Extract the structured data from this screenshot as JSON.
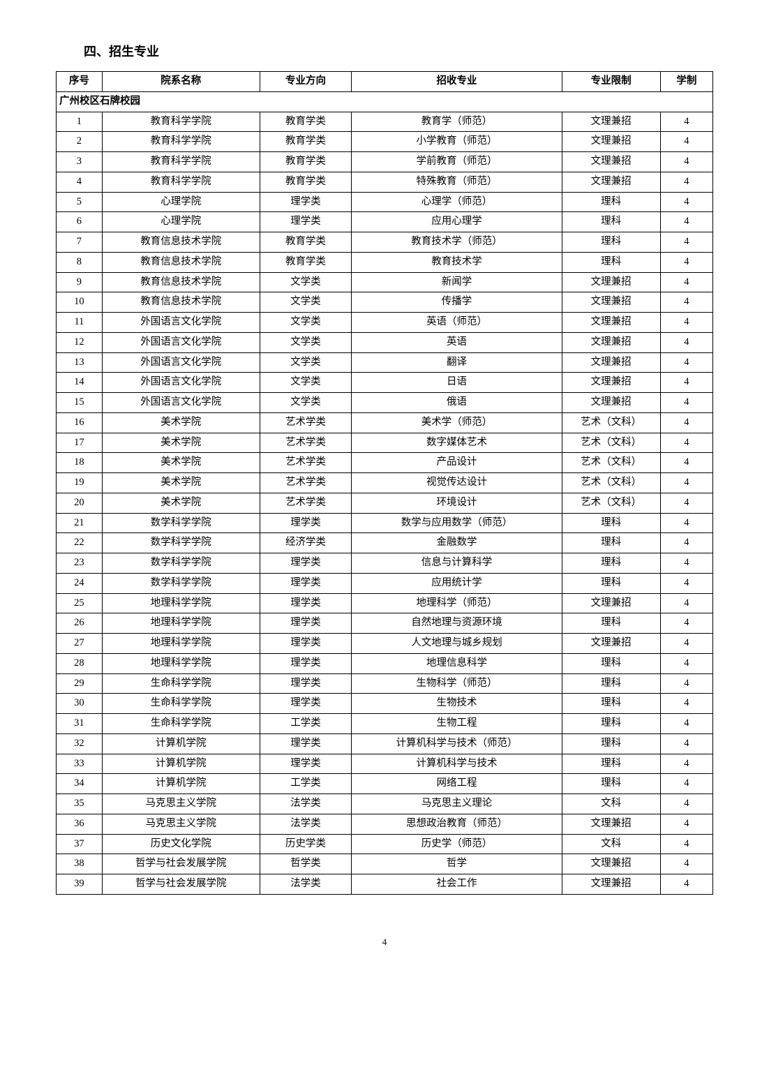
{
  "section_title": "四、招生专业",
  "columns": [
    "序号",
    "院系名称",
    "专业方向",
    "招收专业",
    "专业限制",
    "学制"
  ],
  "campus_header": "广州校区石牌校园",
  "page_number": "4",
  "rows": [
    [
      "1",
      "教育科学学院",
      "教育学类",
      "教育学（师范）",
      "文理兼招",
      "4"
    ],
    [
      "2",
      "教育科学学院",
      "教育学类",
      "小学教育（师范）",
      "文理兼招",
      "4"
    ],
    [
      "3",
      "教育科学学院",
      "教育学类",
      "学前教育（师范）",
      "文理兼招",
      "4"
    ],
    [
      "4",
      "教育科学学院",
      "教育学类",
      "特殊教育（师范）",
      "文理兼招",
      "4"
    ],
    [
      "5",
      "心理学院",
      "理学类",
      "心理学（师范）",
      "理科",
      "4"
    ],
    [
      "6",
      "心理学院",
      "理学类",
      "应用心理学",
      "理科",
      "4"
    ],
    [
      "7",
      "教育信息技术学院",
      "教育学类",
      "教育技术学（师范）",
      "理科",
      "4"
    ],
    [
      "8",
      "教育信息技术学院",
      "教育学类",
      "教育技术学",
      "理科",
      "4"
    ],
    [
      "9",
      "教育信息技术学院",
      "文学类",
      "新闻学",
      "文理兼招",
      "4"
    ],
    [
      "10",
      "教育信息技术学院",
      "文学类",
      "传播学",
      "文理兼招",
      "4"
    ],
    [
      "11",
      "外国语言文化学院",
      "文学类",
      "英语（师范）",
      "文理兼招",
      "4"
    ],
    [
      "12",
      "外国语言文化学院",
      "文学类",
      "英语",
      "文理兼招",
      "4"
    ],
    [
      "13",
      "外国语言文化学院",
      "文学类",
      "翻译",
      "文理兼招",
      "4"
    ],
    [
      "14",
      "外国语言文化学院",
      "文学类",
      "日语",
      "文理兼招",
      "4"
    ],
    [
      "15",
      "外国语言文化学院",
      "文学类",
      "俄语",
      "文理兼招",
      "4"
    ],
    [
      "16",
      "美术学院",
      "艺术学类",
      "美术学（师范）",
      "艺术（文科）",
      "4"
    ],
    [
      "17",
      "美术学院",
      "艺术学类",
      "数字媒体艺术",
      "艺术（文科）",
      "4"
    ],
    [
      "18",
      "美术学院",
      "艺术学类",
      "产品设计",
      "艺术（文科）",
      "4"
    ],
    [
      "19",
      "美术学院",
      "艺术学类",
      "视觉传达设计",
      "艺术（文科）",
      "4"
    ],
    [
      "20",
      "美术学院",
      "艺术学类",
      "环境设计",
      "艺术（文科）",
      "4"
    ],
    [
      "21",
      "数学科学学院",
      "理学类",
      "数学与应用数学（师范）",
      "理科",
      "4"
    ],
    [
      "22",
      "数学科学学院",
      "经济学类",
      "金融数学",
      "理科",
      "4"
    ],
    [
      "23",
      "数学科学学院",
      "理学类",
      "信息与计算科学",
      "理科",
      "4"
    ],
    [
      "24",
      "数学科学学院",
      "理学类",
      "应用统计学",
      "理科",
      "4"
    ],
    [
      "25",
      "地理科学学院",
      "理学类",
      "地理科学（师范）",
      "文理兼招",
      "4"
    ],
    [
      "26",
      "地理科学学院",
      "理学类",
      "自然地理与资源环境",
      "理科",
      "4"
    ],
    [
      "27",
      "地理科学学院",
      "理学类",
      "人文地理与城乡规划",
      "文理兼招",
      "4"
    ],
    [
      "28",
      "地理科学学院",
      "理学类",
      "地理信息科学",
      "理科",
      "4"
    ],
    [
      "29",
      "生命科学学院",
      "理学类",
      "生物科学（师范）",
      "理科",
      "4"
    ],
    [
      "30",
      "生命科学学院",
      "理学类",
      "生物技术",
      "理科",
      "4"
    ],
    [
      "31",
      "生命科学学院",
      "工学类",
      "生物工程",
      "理科",
      "4"
    ],
    [
      "32",
      "计算机学院",
      "理学类",
      "计算机科学与技术（师范）",
      "理科",
      "4"
    ],
    [
      "33",
      "计算机学院",
      "理学类",
      "计算机科学与技术",
      "理科",
      "4"
    ],
    [
      "34",
      "计算机学院",
      "工学类",
      "网络工程",
      "理科",
      "4"
    ],
    [
      "35",
      "马克思主义学院",
      "法学类",
      "马克思主义理论",
      "文科",
      "4"
    ],
    [
      "36",
      "马克思主义学院",
      "法学类",
      "思想政治教育（师范）",
      "文理兼招",
      "4"
    ],
    [
      "37",
      "历史文化学院",
      "历史学类",
      "历史学（师范）",
      "文科",
      "4"
    ],
    [
      "38",
      "哲学与社会发展学院",
      "哲学类",
      "哲学",
      "文理兼招",
      "4"
    ],
    [
      "39",
      "哲学与社会发展学院",
      "法学类",
      "社会工作",
      "文理兼招",
      "4"
    ]
  ]
}
